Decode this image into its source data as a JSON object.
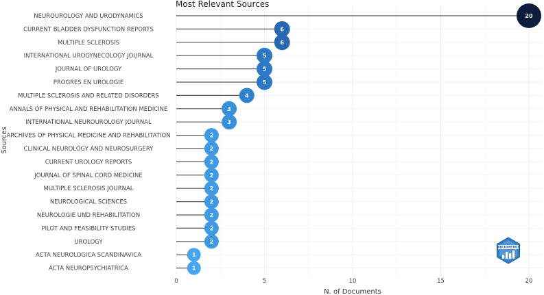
{
  "chart_data": {
    "type": "lollipop",
    "title": "Most Relevant Sources",
    "xlabel": "N. of Documents",
    "ylabel": "Sources",
    "xlim": [
      0,
      20
    ],
    "xticks": [
      0,
      5,
      10,
      15,
      20
    ],
    "grid": true,
    "categories": [
      "NEUROUROLOGY AND URODYNAMICS",
      "CURRENT BLADDER DYSFUNCTION REPORTS",
      "MULTIPLE SCLEROSIS",
      "INTERNATIONAL UROGYNECOLOGY JOURNAL",
      "JOURNAL OF UROLOGY",
      "PROGRES EN UROLOGIE",
      "MULTIPLE SCLEROSIS AND RELATED DISORDERS",
      "ANNALS OF PHYSICAL AND REHABILITATION MEDICINE",
      "INTERNATIONAL NEUROUROLOGY JOURNAL",
      "ARCHIVES OF PHYSICAL MEDICINE AND REHABILITATION",
      "CLINICAL NEUROLOGY AND NEUROSURGERY",
      "CURRENT UROLOGY REPORTS",
      "JOURNAL OF SPINAL CORD MEDICINE",
      "MULTIPLE SCLEROSIS JOURNAL",
      "NEUROLOGICAL SCIENCES",
      "NEUROLOGIE UND REHABILITATION",
      "PILOT AND FEASIBILITY STUDIES",
      "UROLOGY",
      "ACTA NEUROLOGICA SCANDINAVICA",
      "ACTA NEUROPSYCHIATRICA"
    ],
    "values": [
      20,
      6,
      6,
      5,
      5,
      5,
      4,
      3,
      3,
      2,
      2,
      2,
      2,
      2,
      2,
      2,
      2,
      2,
      1,
      1
    ],
    "colors": {
      "20": "#0b1c3d",
      "6": "#2668b3",
      "5": "#2a78c6",
      "4": "#2f82cf",
      "3": "#3790dc",
      "2": "#3f9ae6",
      "1": "#47a5f0"
    },
    "stem_color": "#555555",
    "grid_color": "#ececec"
  },
  "logo": {
    "name": "bibliometrix-logo",
    "text": "BIBLIOMETRIX"
  }
}
